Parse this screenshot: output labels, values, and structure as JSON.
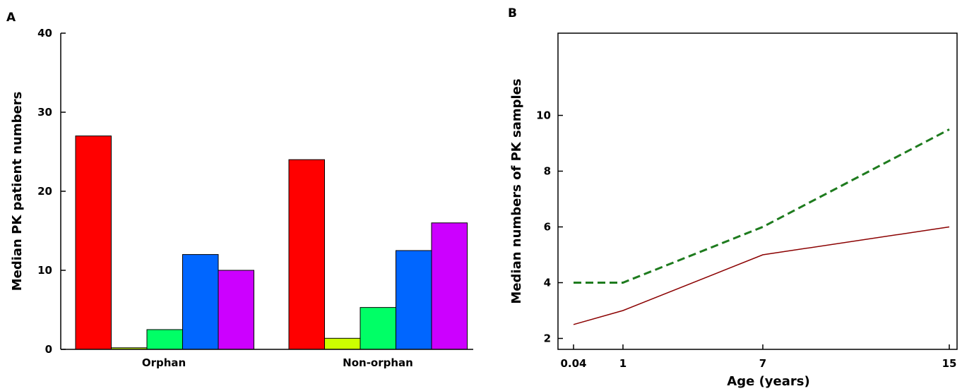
{
  "panels": [
    {
      "letter": "A",
      "chart_data": {
        "type": "bar",
        "categories": [
          "Orphan",
          "Non-orphan"
        ],
        "series": [
          {
            "color": "#ff0000",
            "values": [
              27,
              24
            ]
          },
          {
            "color": "#ccff00",
            "values": [
              0.2,
              1.4
            ]
          },
          {
            "color": "#00ff66",
            "values": [
              2.5,
              5.3
            ]
          },
          {
            "color": "#0066ff",
            "values": [
              12,
              12.5
            ]
          },
          {
            "color": "#cc00ff",
            "values": [
              10,
              16
            ]
          }
        ],
        "ylabel": "Median PK patient numbers",
        "xlabel": "",
        "ylim": [
          0,
          40
        ],
        "yticks": [
          "0",
          "10",
          "20",
          "30",
          "40"
        ],
        "grid": false
      }
    },
    {
      "letter": "B",
      "chart_data": {
        "type": "line",
        "x": [
          0.04,
          1,
          7,
          15
        ],
        "xticks": [
          "0.04",
          "1",
          "7",
          "15"
        ],
        "series": [
          {
            "color": "#1e7b1e",
            "style": "dashed",
            "values": [
              4,
              4,
              6,
              9.5
            ]
          },
          {
            "color": "#8b0000",
            "style": "solid",
            "values": [
              2.5,
              3,
              5,
              6
            ]
          }
        ],
        "xlabel": "Age (years)",
        "ylabel": "Median numbers of PK samples",
        "ylim": [
          0,
          10.8
        ],
        "yticks": [
          "2",
          "4",
          "6",
          "8",
          "10"
        ],
        "grid": false
      }
    }
  ]
}
